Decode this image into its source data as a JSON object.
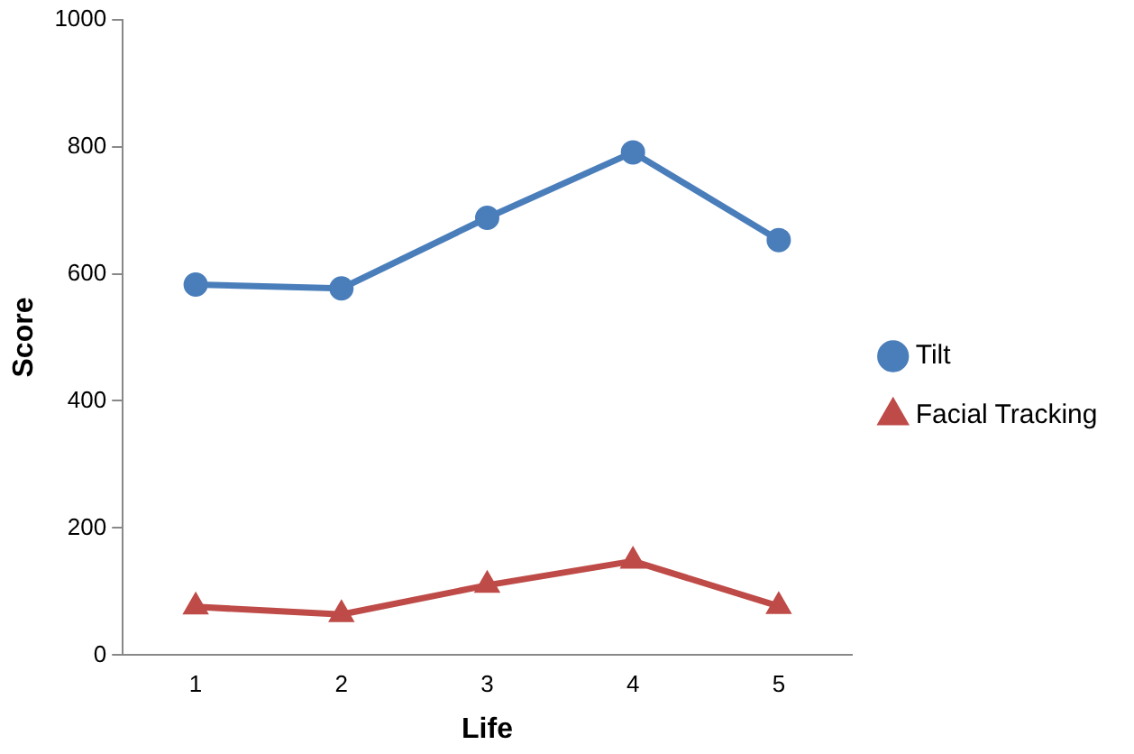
{
  "chart_data": {
    "type": "line",
    "xlabel": "Life",
    "ylabel": "Score",
    "categories": [
      "1",
      "2",
      "3",
      "4",
      "5"
    ],
    "series": [
      {
        "name": "Tilt",
        "color": "#4a7ebb",
        "values": [
          583,
          577,
          688,
          791,
          653
        ],
        "marker": "circle"
      },
      {
        "name": "Facial Tracking",
        "color": "#be4b48",
        "values": [
          76,
          64,
          110,
          148,
          77
        ],
        "marker": "triangle"
      }
    ],
    "ylim": [
      0,
      1000
    ],
    "yticks": [
      0,
      200,
      400,
      600,
      800,
      1000
    ],
    "grid": false,
    "legend": "right",
    "line_style": "solid"
  }
}
